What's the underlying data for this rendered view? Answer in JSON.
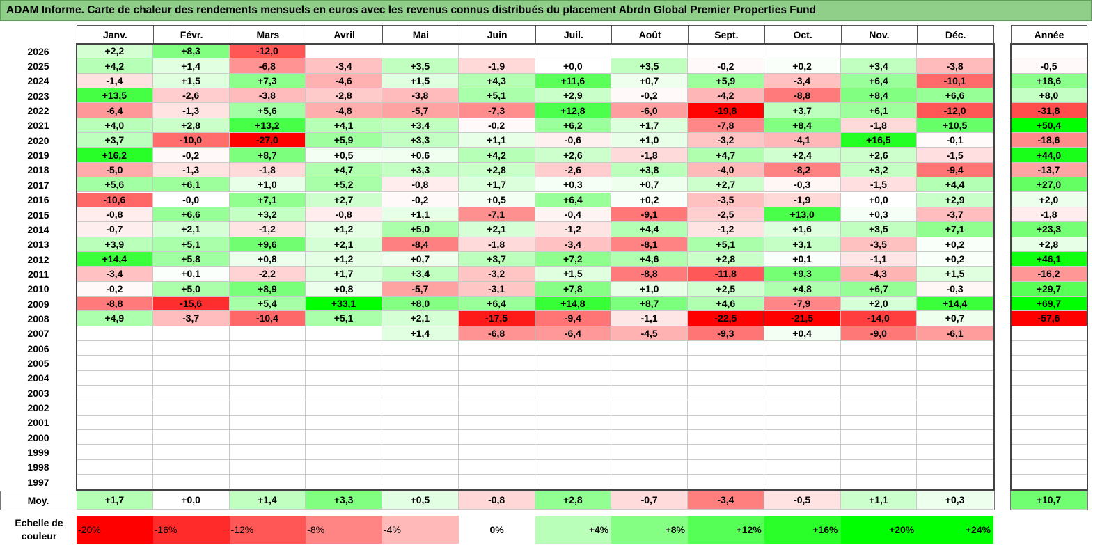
{
  "title": "ADAM Informe. Carte de chaleur des rendements mensuels en euros avec les revenus connus distribués du placement Abrdn Global Premier Properties Fund",
  "chart_data": {
    "type": "heatmap",
    "columns": [
      "Janv.",
      "Févr.",
      "Mars",
      "Avril",
      "Mai",
      "Juin",
      "Juil.",
      "Août",
      "Sept.",
      "Oct.",
      "Nov.",
      "Déc."
    ],
    "annual_header": "Année",
    "average_label": "Moy.",
    "rows": [
      {
        "year": "2026",
        "months": [
          "+2,2",
          "+8,3",
          "-12,0",
          "",
          "",
          "",
          "",
          "",
          "",
          "",
          "",
          ""
        ],
        "annual": ""
      },
      {
        "year": "2025",
        "months": [
          "+4,2",
          "+1,4",
          "-6,8",
          "-3,4",
          "+3,5",
          "-1,9",
          "+0,0",
          "+3,5",
          "-0,2",
          "+0,2",
          "+3,4",
          "-3,8"
        ],
        "annual": "-0,5"
      },
      {
        "year": "2024",
        "months": [
          "-1,4",
          "+1,5",
          "+7,3",
          "-4,6",
          "+1,5",
          "+4,3",
          "+11,6",
          "+0,7",
          "+5,9",
          "-3,4",
          "+6,4",
          "-10,1"
        ],
        "annual": "+18,6"
      },
      {
        "year": "2023",
        "months": [
          "+13,5",
          "-2,6",
          "-3,8",
          "-2,8",
          "-3,8",
          "+5,1",
          "+2,9",
          "-0,2",
          "-4,2",
          "-8,8",
          "+8,4",
          "+6,6"
        ],
        "annual": "+8,0"
      },
      {
        "year": "2022",
        "months": [
          "-6,4",
          "-1,3",
          "+5,6",
          "-4,8",
          "-5,7",
          "-7,3",
          "+12,8",
          "-6,0",
          "-19,8",
          "+3,7",
          "+6,1",
          "-12,0"
        ],
        "annual": "-31,8"
      },
      {
        "year": "2021",
        "months": [
          "+4,0",
          "+2,8",
          "+13,2",
          "+4,1",
          "+3,4",
          "-0,2",
          "+6,2",
          "+1,7",
          "-7,8",
          "+8,4",
          "-1,8",
          "+10,5"
        ],
        "annual": "+50,4"
      },
      {
        "year": "2020",
        "months": [
          "+3,7",
          "-10,0",
          "-27,0",
          "+5,9",
          "+3,3",
          "+1,1",
          "-0,6",
          "+1,0",
          "-3,2",
          "-4,1",
          "+16,5",
          "-0,1"
        ],
        "annual": "-18,6"
      },
      {
        "year": "2019",
        "months": [
          "+16,2",
          "-0,2",
          "+8,7",
          "+0,5",
          "+0,6",
          "+4,2",
          "+2,6",
          "-1,8",
          "+4,7",
          "+2,4",
          "+2,6",
          "-1,5"
        ],
        "annual": "+44,0"
      },
      {
        "year": "2018",
        "months": [
          "-5,0",
          "-1,3",
          "-1,8",
          "+4,7",
          "+3,3",
          "+2,8",
          "-2,6",
          "+3,8",
          "-4,0",
          "-8,2",
          "+3,2",
          "-9,4"
        ],
        "annual": "-13,7"
      },
      {
        "year": "2017",
        "months": [
          "+5,6",
          "+6,1",
          "+1,0",
          "+5,2",
          "-0,8",
          "+1,7",
          "+0,3",
          "+0,7",
          "+2,7",
          "-0,3",
          "-1,5",
          "+4,4"
        ],
        "annual": "+27,0"
      },
      {
        "year": "2016",
        "months": [
          "-10,6",
          "-0,0",
          "+7,1",
          "+2,7",
          "-0,2",
          "+0,5",
          "+6,4",
          "+0,2",
          "-3,5",
          "-1,9",
          "+0,0",
          "+2,9"
        ],
        "annual": "+2,0"
      },
      {
        "year": "2015",
        "months": [
          "-0,8",
          "+6,6",
          "+3,2",
          "-0,8",
          "+1,1",
          "-7,1",
          "-0,4",
          "-9,1",
          "-2,5",
          "+13,0",
          "+0,3",
          "-3,7"
        ],
        "annual": "-1,8"
      },
      {
        "year": "2014",
        "months": [
          "-0,7",
          "+2,1",
          "-1,2",
          "+1,2",
          "+5,0",
          "+2,1",
          "-1,2",
          "+4,4",
          "-1,2",
          "+1,6",
          "+3,5",
          "+7,1"
        ],
        "annual": "+23,3"
      },
      {
        "year": "2013",
        "months": [
          "+3,9",
          "+5,1",
          "+9,6",
          "+2,1",
          "-8,4",
          "-1,8",
          "-3,4",
          "-8,1",
          "+5,1",
          "+3,1",
          "-3,5",
          "+0,2"
        ],
        "annual": "+2,8"
      },
      {
        "year": "2012",
        "months": [
          "+14,4",
          "+5,8",
          "+0,8",
          "+1,2",
          "+0,7",
          "+3,7",
          "+7,2",
          "+4,6",
          "+2,8",
          "+0,1",
          "-1,1",
          "+0,2"
        ],
        "annual": "+46,1"
      },
      {
        "year": "2011",
        "months": [
          "-3,4",
          "+0,1",
          "-2,2",
          "+1,7",
          "+3,4",
          "-3,2",
          "+1,5",
          "-8,8",
          "-11,8",
          "+9,3",
          "-4,3",
          "+1,5"
        ],
        "annual": "-16,2"
      },
      {
        "year": "2010",
        "months": [
          "-0,2",
          "+5,0",
          "+8,9",
          "+0,8",
          "-5,7",
          "-3,1",
          "+7,8",
          "+1,0",
          "+2,5",
          "+4,8",
          "+6,7",
          "-0,3"
        ],
        "annual": "+29,7"
      },
      {
        "year": "2009",
        "months": [
          "-8,8",
          "-15,6",
          "+5,4",
          "+33,1",
          "+8,0",
          "+6,4",
          "+14,8",
          "+8,7",
          "+4,6",
          "-7,9",
          "+2,0",
          "+14,4"
        ],
        "annual": "+69,7"
      },
      {
        "year": "2008",
        "months": [
          "+4,9",
          "-3,7",
          "-10,4",
          "+5,1",
          "+2,1",
          "-17,5",
          "-9,4",
          "-1,1",
          "-22,5",
          "-21,5",
          "-14,0",
          "+0,7"
        ],
        "annual": "-57,6"
      },
      {
        "year": "2007",
        "months": [
          "",
          "",
          "",
          "",
          "+1,4",
          "-6,8",
          "-6,4",
          "-4,5",
          "-9,3",
          "+0,4",
          "-9,0",
          "-6,1"
        ],
        "annual": ""
      },
      {
        "year": "2006",
        "months": [
          "",
          "",
          "",
          "",
          "",
          "",
          "",
          "",
          "",
          "",
          "",
          ""
        ],
        "annual": ""
      },
      {
        "year": "2005",
        "months": [
          "",
          "",
          "",
          "",
          "",
          "",
          "",
          "",
          "",
          "",
          "",
          ""
        ],
        "annual": ""
      },
      {
        "year": "2004",
        "months": [
          "",
          "",
          "",
          "",
          "",
          "",
          "",
          "",
          "",
          "",
          "",
          ""
        ],
        "annual": ""
      },
      {
        "year": "2003",
        "months": [
          "",
          "",
          "",
          "",
          "",
          "",
          "",
          "",
          "",
          "",
          "",
          ""
        ],
        "annual": ""
      },
      {
        "year": "2002",
        "months": [
          "",
          "",
          "",
          "",
          "",
          "",
          "",
          "",
          "",
          "",
          "",
          ""
        ],
        "annual": ""
      },
      {
        "year": "2001",
        "months": [
          "",
          "",
          "",
          "",
          "",
          "",
          "",
          "",
          "",
          "",
          "",
          ""
        ],
        "annual": ""
      },
      {
        "year": "2000",
        "months": [
          "",
          "",
          "",
          "",
          "",
          "",
          "",
          "",
          "",
          "",
          "",
          ""
        ],
        "annual": ""
      },
      {
        "year": "1999",
        "months": [
          "",
          "",
          "",
          "",
          "",
          "",
          "",
          "",
          "",
          "",
          "",
          ""
        ],
        "annual": ""
      },
      {
        "year": "1998",
        "months": [
          "",
          "",
          "",
          "",
          "",
          "",
          "",
          "",
          "",
          "",
          "",
          ""
        ],
        "annual": ""
      },
      {
        "year": "1997",
        "months": [
          "",
          "",
          "",
          "",
          "",
          "",
          "",
          "",
          "",
          "",
          "",
          ""
        ],
        "annual": ""
      }
    ],
    "averages": {
      "months": [
        "+1,7",
        "+0,0",
        "+1,4",
        "+3,3",
        "+0,5",
        "-0,8",
        "+2,8",
        "-0,7",
        "-3,4",
        "-0,5",
        "+1,1",
        "+0,3"
      ],
      "annual": "+10,7"
    },
    "legend": {
      "title": "Echelle de couleur",
      "stops": [
        "-20%",
        "-16%",
        "-12%",
        "-8%",
        "-4%",
        "0%",
        "+4%",
        "+8%",
        "+12%",
        "+16%",
        "+20%",
        "+24%"
      ],
      "stop_values": [
        -20,
        -16,
        -12,
        -8,
        -4,
        0,
        4,
        8,
        12,
        16,
        20,
        24
      ]
    },
    "color_scale": {
      "negative": "#ff0000",
      "neutral": "#ffffff",
      "positive": "#00ff00",
      "monthly_limit": 20,
      "annual_limit": 50
    }
  }
}
